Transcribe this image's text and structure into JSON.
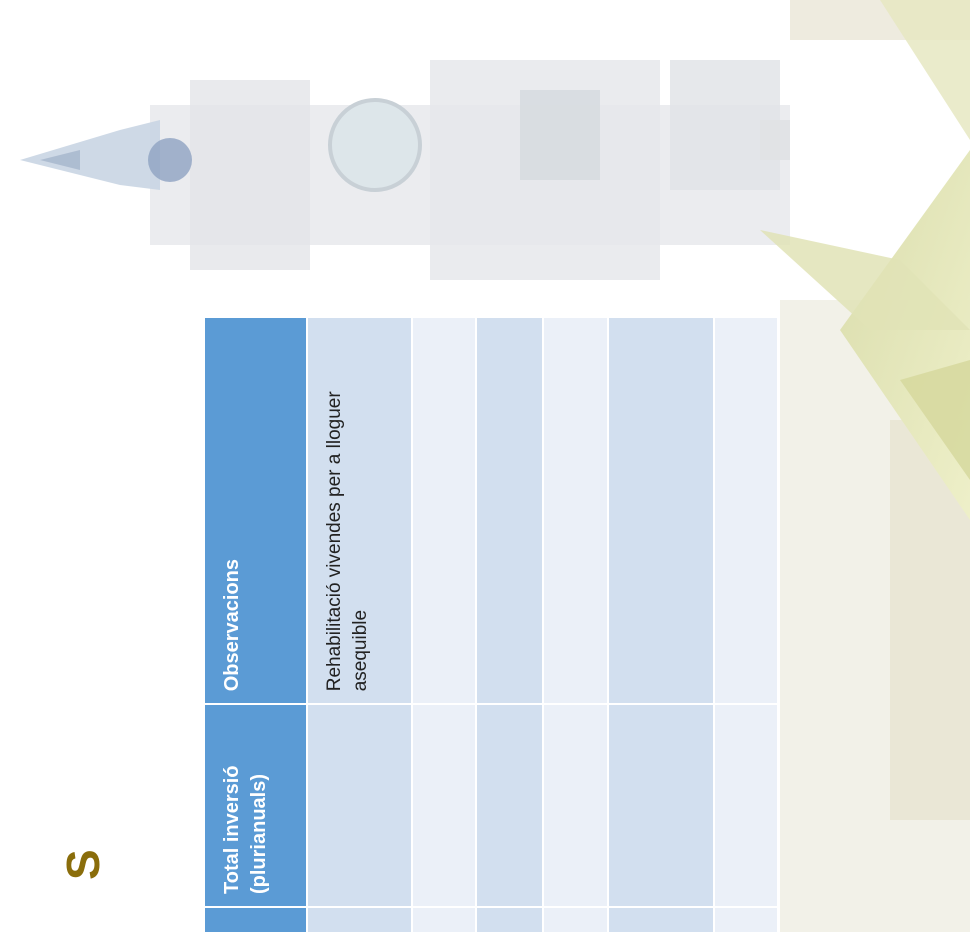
{
  "slide": {
    "heading_letter": "S"
  },
  "table": {
    "headers": {
      "total": "Total inversió (plurianuals)",
      "observations": "Observacions"
    },
    "rows": [
      {
        "total": "",
        "observations": "Rehabilitació vivendes per a lloguer asequible"
      },
      {
        "total": "",
        "observations": ""
      },
      {
        "total": "",
        "observations": ""
      },
      {
        "total": "",
        "observations": ""
      },
      {
        "total": "",
        "observations": ""
      },
      {
        "total": "",
        "observations": ""
      }
    ]
  },
  "colors": {
    "header_fill": "#5b9bd5",
    "band_dark": "#cfdded",
    "band_light": "#e9eff7",
    "heading_letter": "#8a6d0b"
  }
}
